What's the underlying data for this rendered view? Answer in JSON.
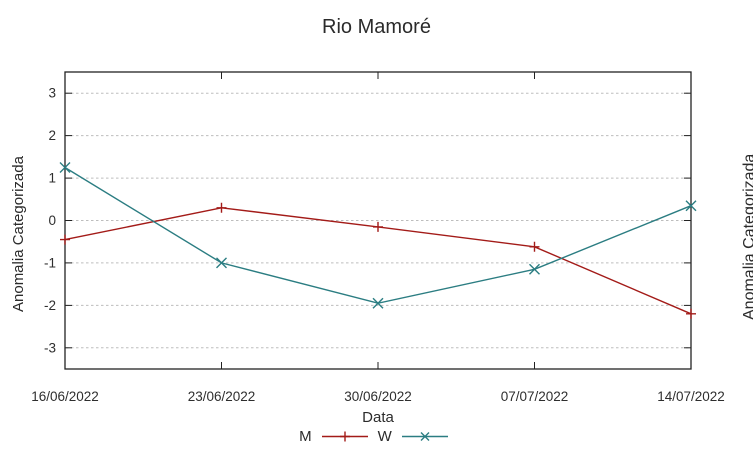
{
  "chart_data": {
    "type": "line",
    "title": "Rio Mamoré",
    "xlabel": "Data",
    "ylabel": "Anomalia Categorizada",
    "categories": [
      "16/06/2022",
      "23/06/2022",
      "30/06/2022",
      "07/07/2022",
      "14/07/2022"
    ],
    "series": [
      {
        "name": "M",
        "color": "#a31b18",
        "marker": "plus",
        "values": [
          -0.45,
          0.3,
          -0.15,
          -0.62,
          -2.2
        ]
      },
      {
        "name": "W",
        "color": "#2b7d82",
        "marker": "cross",
        "values": [
          1.25,
          -1.0,
          -1.95,
          -1.15,
          0.35
        ]
      }
    ],
    "ylim": [
      -3.5,
      3.5
    ],
    "yticks": [
      -3,
      -2,
      -1,
      0,
      1,
      2,
      3
    ],
    "grid": "horizontal-dashed",
    "legend_position": "bottom-center"
  },
  "adjacent_chart": {
    "ylabel": "Anomalia Categorizada"
  },
  "colors": {
    "background": "#ffffff",
    "border": "#222222",
    "gridline": "#bdbdbd",
    "text": "#2b2b2b"
  }
}
